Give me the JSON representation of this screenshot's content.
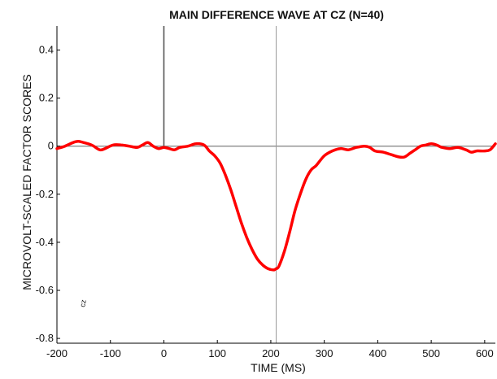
{
  "chart_data": {
    "type": "line",
    "title": "MAIN DIFFERENCE WAVE AT CZ (N=40)",
    "xlabel": "TIME (MS)",
    "ylabel": "MICROVOLT-SCALED FACTOR SCORES",
    "xlim": [
      -200,
      620
    ],
    "ylim": [
      -0.82,
      0.5
    ],
    "x_ticks": [
      -200,
      -100,
      0,
      100,
      200,
      300,
      400,
      500,
      600
    ],
    "x_tick_labels": [
      "-200",
      "-100",
      "0",
      "100",
      "200",
      "300",
      "400",
      "500",
      "600"
    ],
    "y_ticks": [
      0.4,
      0.2,
      0,
      -0.2,
      -0.4,
      -0.6,
      -0.8
    ],
    "y_tick_labels": [
      "0.4",
      "0.2",
      "0",
      "-0.2",
      "-0.4",
      "-0.6",
      "-0.8"
    ],
    "reference_lines": {
      "x": [
        0,
        210
      ],
      "y": [
        0
      ]
    },
    "annotation": "cz",
    "colors": {
      "line": "#ff0000",
      "axes": "#000000",
      "reference": "#7f7f7f"
    },
    "grid": false,
    "series": [
      {
        "x": [
          -200,
          -185,
          -170,
          -160,
          -150,
          -135,
          -120,
          -110,
          -95,
          -80,
          -65,
          -50,
          -40,
          -30,
          -20,
          -10,
          0,
          10,
          20,
          30,
          45,
          60,
          75,
          85,
          95,
          105,
          115,
          125,
          135,
          145,
          155,
          165,
          175,
          185,
          195,
          205,
          210,
          215,
          225,
          235,
          245,
          255,
          265,
          275,
          285,
          300,
          315,
          330,
          345,
          360,
          375,
          385,
          395,
          410,
          425,
          440,
          450,
          460,
          470,
          480,
          490,
          500,
          510,
          520,
          535,
          550,
          565,
          575,
          585,
          600,
          610,
          620
        ],
        "y": [
          -0.01,
          0.0,
          0.015,
          0.02,
          0.015,
          0.005,
          -0.015,
          -0.01,
          0.005,
          0.005,
          0.0,
          -0.005,
          0.005,
          0.015,
          0.0,
          -0.01,
          -0.005,
          -0.01,
          -0.015,
          -0.005,
          0.0,
          0.01,
          0.005,
          -0.02,
          -0.04,
          -0.07,
          -0.12,
          -0.18,
          -0.25,
          -0.32,
          -0.38,
          -0.43,
          -0.47,
          -0.495,
          -0.51,
          -0.515,
          -0.51,
          -0.5,
          -0.44,
          -0.36,
          -0.27,
          -0.2,
          -0.14,
          -0.1,
          -0.08,
          -0.04,
          -0.02,
          -0.01,
          -0.015,
          -0.005,
          0.0,
          -0.005,
          -0.02,
          -0.025,
          -0.035,
          -0.045,
          -0.045,
          -0.03,
          -0.015,
          0.0,
          0.005,
          0.01,
          0.005,
          -0.005,
          -0.01,
          -0.005,
          -0.015,
          -0.025,
          -0.02,
          -0.02,
          -0.015,
          0.01
        ]
      }
    ]
  }
}
